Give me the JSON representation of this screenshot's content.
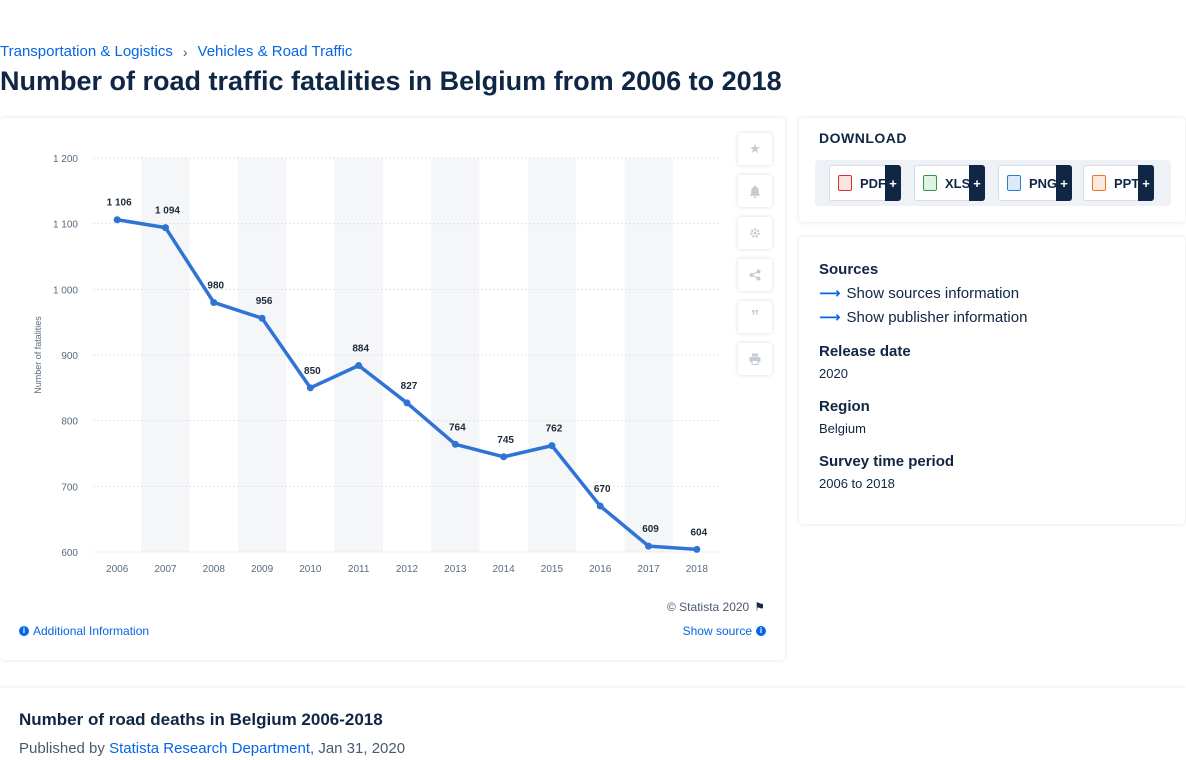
{
  "breadcrumb": {
    "item1": "Transportation & Logistics",
    "sep": "›",
    "item2": "Vehicles & Road Traffic"
  },
  "page_title": "Number of road traffic fatalities in Belgium from 2006 to 2018",
  "chart_data": {
    "type": "line",
    "title": "",
    "xlabel": "",
    "ylabel": "Number of fatalities",
    "categories": [
      "2006",
      "2007",
      "2008",
      "2009",
      "2010",
      "2011",
      "2012",
      "2013",
      "2014",
      "2015",
      "2016",
      "2017",
      "2018"
    ],
    "series": [
      {
        "values": [
          1106,
          1094,
          980,
          956,
          850,
          884,
          827,
          764,
          745,
          762,
          670,
          609,
          604
        ]
      }
    ],
    "value_labels": [
      "1 106",
      "1 094",
      "980",
      "956",
      "850",
      "884",
      "827",
      "764",
      "745",
      "762",
      "670",
      "609",
      "604"
    ],
    "y_ticks": [
      1200,
      1100,
      1000,
      900,
      800,
      700,
      600
    ],
    "y_tick_labels": [
      "1 200",
      "1 100",
      "1 000",
      "900",
      "800",
      "700",
      "600"
    ],
    "ylim": [
      600,
      1200
    ],
    "grid": true,
    "line_color": "#2f73d6",
    "band_color": "#f5f6f8"
  },
  "chart_footer": {
    "copyright": "© Statista 2020",
    "additional_info": "Additional Information",
    "show_source": "Show source"
  },
  "toolbar_icons": [
    "star-icon",
    "bell-icon",
    "gear-icon",
    "share-icon",
    "quote-icon",
    "print-icon"
  ],
  "download": {
    "title": "DOWNLOAD",
    "buttons": [
      {
        "label": "PDF",
        "plus": "+",
        "color": "#d9322e"
      },
      {
        "label": "XLS",
        "plus": "+",
        "color": "#2e9b3e"
      },
      {
        "label": "PNG",
        "plus": "+",
        "color": "#2a7fd0"
      },
      {
        "label": "PPT",
        "plus": "+",
        "color": "#e8772b"
      }
    ]
  },
  "sources": {
    "heading": "Sources",
    "show_sources": "Show sources information",
    "show_publisher": "Show publisher information",
    "release_date_label": "Release date",
    "release_date": "2020",
    "region_label": "Region",
    "region": "Belgium",
    "survey_label": "Survey time period",
    "survey": "2006 to 2018"
  },
  "description": {
    "title": "Number of road deaths in Belgium 2006-2018",
    "published_by": "Published by",
    "publisher": "Statista Research Department",
    "date": ", Jan 31, 2020"
  }
}
